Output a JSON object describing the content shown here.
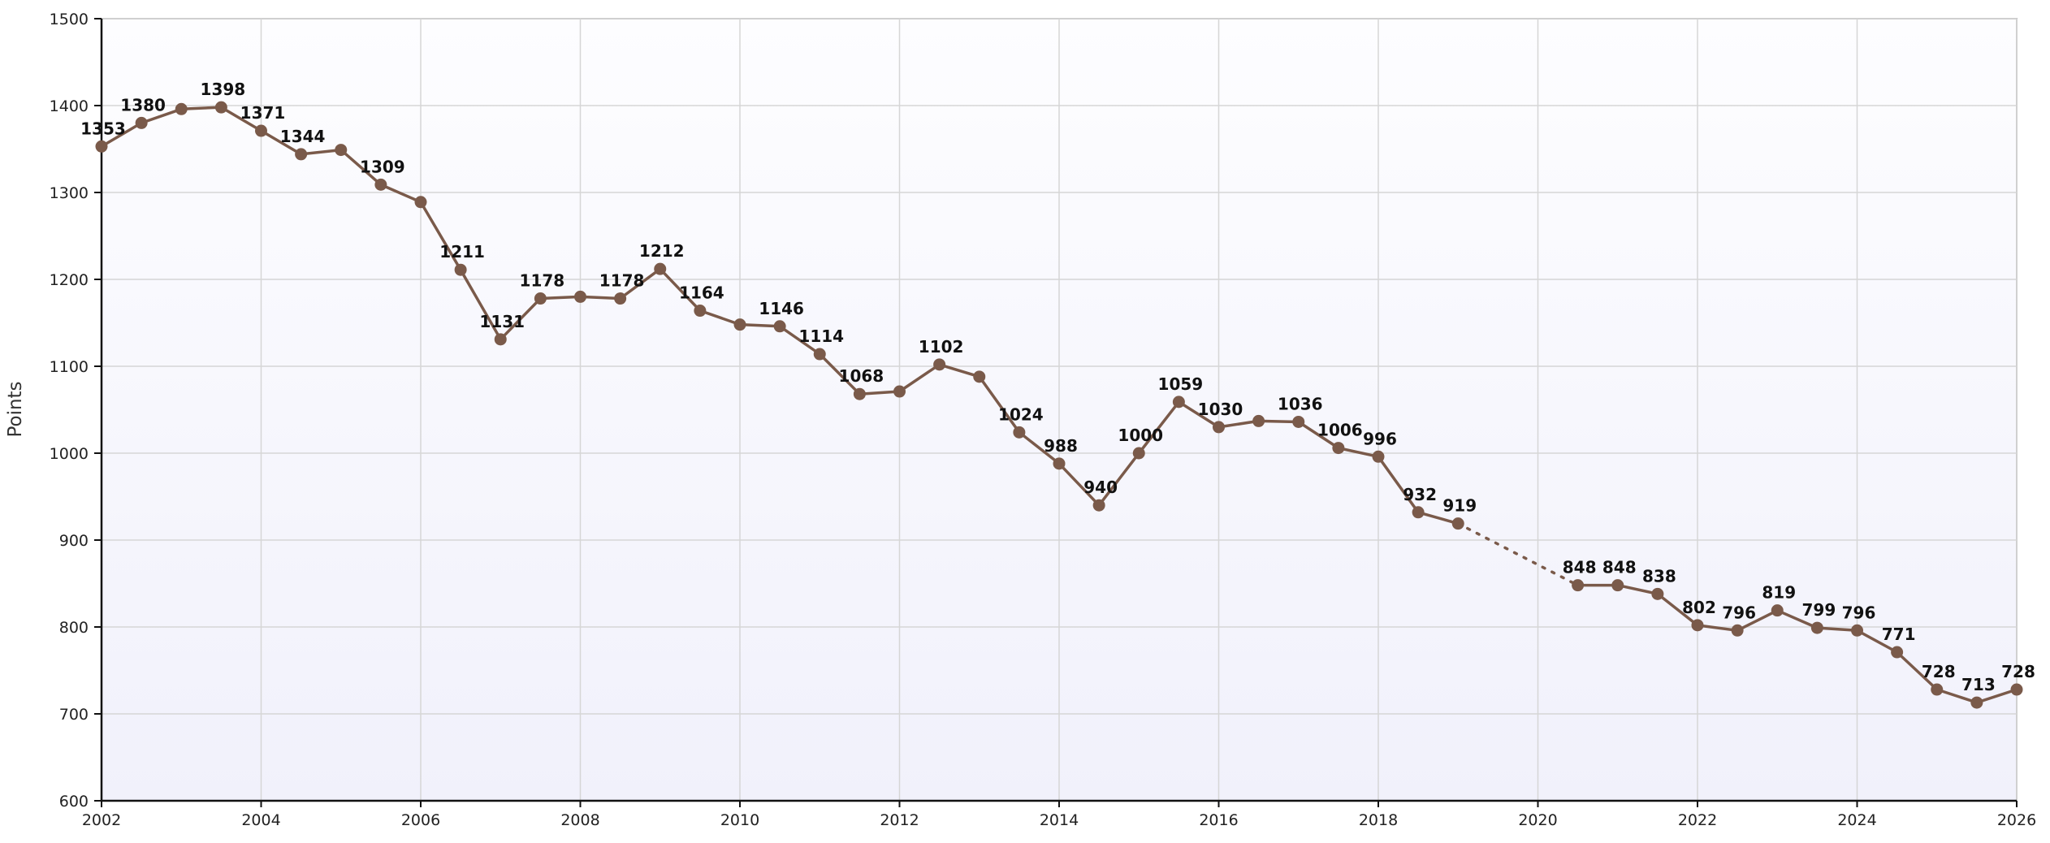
{
  "chart_data": {
    "type": "line",
    "ylabel": "Points",
    "xlim": [
      2002,
      2026
    ],
    "ylim": [
      600,
      1500
    ],
    "x_ticks": [
      "2002",
      "2004",
      "2006",
      "2008",
      "2010",
      "2012",
      "2014",
      "2016",
      "2018",
      "2020",
      "2022",
      "2024",
      "2026"
    ],
    "y_ticks": [
      "600",
      "700",
      "800",
      "900",
      "1000",
      "1100",
      "1200",
      "1300",
      "1400",
      "1500"
    ],
    "grid": true,
    "colors": {
      "series": "#7a5a4a",
      "grid": "#d6d6d6",
      "axis": "#111111"
    },
    "series": [
      {
        "points": [
          {
            "x": 2002.0,
            "y": 1353,
            "label": "1353"
          },
          {
            "x": 2002.5,
            "y": 1380,
            "label": "1380"
          },
          {
            "x": 2003.0,
            "y": 1396
          },
          {
            "x": 2003.5,
            "y": 1398,
            "label": "1398"
          },
          {
            "x": 2004.0,
            "y": 1371,
            "label": "1371"
          },
          {
            "x": 2004.5,
            "y": 1344,
            "label": "1344"
          },
          {
            "x": 2005.0,
            "y": 1349
          },
          {
            "x": 2005.5,
            "y": 1309,
            "label": "1309"
          },
          {
            "x": 2006.0,
            "y": 1289
          },
          {
            "x": 2006.5,
            "y": 1211,
            "label": "1211"
          },
          {
            "x": 2007.0,
            "y": 1131,
            "label": "1131"
          },
          {
            "x": 2007.5,
            "y": 1178,
            "label": "1178"
          },
          {
            "x": 2008.0,
            "y": 1180
          },
          {
            "x": 2008.5,
            "y": 1178,
            "label": "1178"
          },
          {
            "x": 2009.0,
            "y": 1212,
            "label": "1212"
          },
          {
            "x": 2009.5,
            "y": 1164,
            "label": "1164"
          },
          {
            "x": 2010.0,
            "y": 1148
          },
          {
            "x": 2010.5,
            "y": 1146,
            "label": "1146"
          },
          {
            "x": 2011.0,
            "y": 1114,
            "label": "1114"
          },
          {
            "x": 2011.5,
            "y": 1068,
            "label": "1068"
          },
          {
            "x": 2012.0,
            "y": 1071
          },
          {
            "x": 2012.5,
            "y": 1102,
            "label": "1102"
          },
          {
            "x": 2013.0,
            "y": 1088
          },
          {
            "x": 2013.5,
            "y": 1024,
            "label": "1024"
          },
          {
            "x": 2014.0,
            "y": 988,
            "label": "988"
          },
          {
            "x": 2014.5,
            "y": 940,
            "label": "940"
          },
          {
            "x": 2015.0,
            "y": 1000,
            "label": "1000"
          },
          {
            "x": 2015.5,
            "y": 1059,
            "label": "1059"
          },
          {
            "x": 2016.0,
            "y": 1030,
            "label": "1030"
          },
          {
            "x": 2016.5,
            "y": 1037
          },
          {
            "x": 2017.0,
            "y": 1036,
            "label": "1036"
          },
          {
            "x": 2017.5,
            "y": 1006,
            "label": "1006"
          },
          {
            "x": 2018.0,
            "y": 996,
            "label": "996"
          },
          {
            "x": 2018.5,
            "y": 932,
            "label": "932"
          },
          {
            "x": 2019.0,
            "y": 919,
            "label": "919",
            "gap_after": true
          },
          {
            "x": 2020.5,
            "y": 848,
            "label": "848"
          },
          {
            "x": 2021.0,
            "y": 848,
            "label": "848"
          },
          {
            "x": 2021.5,
            "y": 838,
            "label": "838"
          },
          {
            "x": 2022.0,
            "y": 802,
            "label": "802"
          },
          {
            "x": 2022.5,
            "y": 796,
            "label": "796"
          },
          {
            "x": 2023.0,
            "y": 819,
            "label": "819"
          },
          {
            "x": 2023.5,
            "y": 799,
            "label": "799"
          },
          {
            "x": 2024.0,
            "y": 796,
            "label": "796"
          },
          {
            "x": 2024.5,
            "y": 771,
            "label": "771"
          },
          {
            "x": 2025.0,
            "y": 728,
            "label": "728"
          },
          {
            "x": 2025.5,
            "y": 713,
            "label": "713"
          },
          {
            "x": 2026.0,
            "y": 728,
            "label": "728"
          }
        ]
      }
    ]
  }
}
